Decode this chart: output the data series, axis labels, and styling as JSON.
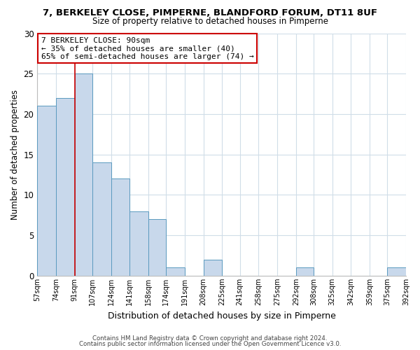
{
  "title": "7, BERKELEY CLOSE, PIMPERNE, BLANDFORD FORUM, DT11 8UF",
  "subtitle": "Size of property relative to detached houses in Pimperne",
  "xlabel": "Distribution of detached houses by size in Pimperne",
  "ylabel": "Number of detached properties",
  "bar_color": "#c8d8eb",
  "bar_edge_color": "#5a9abf",
  "marker_line_color": "#cc0000",
  "marker_value": 91,
  "bin_edges": [
    57,
    74,
    91,
    107,
    124,
    141,
    158,
    174,
    191,
    208,
    225,
    241,
    258,
    275,
    292,
    308,
    325,
    342,
    359,
    375,
    392
  ],
  "bin_labels": [
    "57sqm",
    "74sqm",
    "91sqm",
    "107sqm",
    "124sqm",
    "141sqm",
    "158sqm",
    "174sqm",
    "191sqm",
    "208sqm",
    "225sqm",
    "241sqm",
    "258sqm",
    "275sqm",
    "292sqm",
    "308sqm",
    "325sqm",
    "342sqm",
    "359sqm",
    "375sqm",
    "392sqm"
  ],
  "counts": [
    21,
    22,
    25,
    14,
    12,
    8,
    7,
    1,
    0,
    2,
    0,
    0,
    0,
    0,
    1,
    0,
    0,
    0,
    0,
    1
  ],
  "ylim": [
    0,
    30
  ],
  "yticks": [
    0,
    5,
    10,
    15,
    20,
    25,
    30
  ],
  "annotation_line1": "7 BERKELEY CLOSE: 90sqm",
  "annotation_line2": "← 35% of detached houses are smaller (40)",
  "annotation_line3": "65% of semi-detached houses are larger (74) →",
  "footnote1": "Contains HM Land Registry data © Crown copyright and database right 2024.",
  "footnote2": "Contains public sector information licensed under the Open Government Licence v3.0.",
  "background_color": "#ffffff",
  "grid_color": "#d0dde8"
}
